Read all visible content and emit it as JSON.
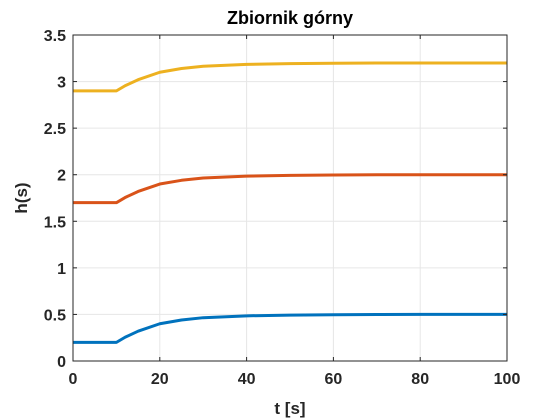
{
  "chart_data": {
    "type": "line",
    "title": "Zbiornik górny",
    "xlabel": "t [s]",
    "ylabel": "h(s)",
    "xlim": [
      0,
      100
    ],
    "ylim": [
      0,
      3.5
    ],
    "xticks": [
      0,
      20,
      40,
      60,
      80,
      100
    ],
    "xtick_labels": [
      "0",
      "20",
      "40",
      "60",
      "80",
      "100"
    ],
    "yticks": [
      0,
      0.5,
      1,
      1.5,
      2,
      2.5,
      3,
      3.5
    ],
    "ytick_labels": [
      "0",
      "0.5",
      "1",
      "1.5",
      "2",
      "2.5",
      "3",
      "3.5"
    ],
    "grid": true,
    "series": [
      {
        "color": "#0072BD",
        "x": [
          0,
          10,
          12,
          15,
          20,
          25,
          30,
          40,
          50,
          60,
          70,
          80,
          90,
          100
        ],
        "y": [
          0.2,
          0.2,
          0.255,
          0.32,
          0.4,
          0.44,
          0.465,
          0.485,
          0.493,
          0.497,
          0.499,
          0.5,
          0.5,
          0.5
        ]
      },
      {
        "color": "#D95319",
        "x": [
          0,
          10,
          12,
          15,
          20,
          25,
          30,
          40,
          50,
          60,
          70,
          80,
          90,
          100
        ],
        "y": [
          1.7,
          1.7,
          1.755,
          1.82,
          1.9,
          1.94,
          1.965,
          1.985,
          1.993,
          1.997,
          1.999,
          2.0,
          2.0,
          2.0
        ]
      },
      {
        "color": "#EDB120",
        "x": [
          0,
          10,
          12,
          15,
          20,
          25,
          30,
          40,
          50,
          60,
          70,
          80,
          90,
          100
        ],
        "y": [
          2.9,
          2.9,
          2.955,
          3.02,
          3.1,
          3.14,
          3.165,
          3.185,
          3.193,
          3.197,
          3.199,
          3.2,
          3.2,
          3.2
        ]
      }
    ]
  }
}
